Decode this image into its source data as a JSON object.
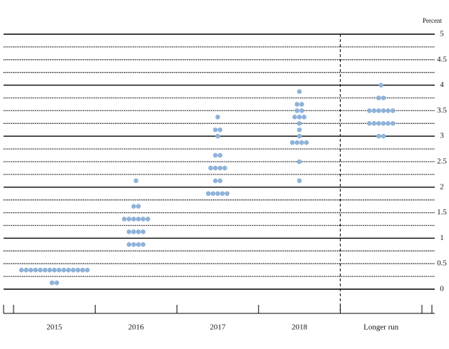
{
  "chart_data": {
    "type": "dot",
    "y_label": "Percent",
    "categories": [
      "2015",
      "2016",
      "2017",
      "2018",
      "Longer run"
    ],
    "color": "#8fb3d9",
    "values": [
      [
        0.375,
        0.375,
        0.375,
        0.375,
        0.375,
        0.375,
        0.375,
        0.375,
        0.375,
        0.375,
        0.375,
        0.375,
        0.375,
        0.375,
        0.375,
        0.125,
        0.125
      ],
      [
        2.125,
        1.625,
        1.625,
        1.375,
        1.375,
        1.375,
        1.375,
        1.375,
        1.375,
        1.125,
        1.125,
        1.125,
        1.125,
        0.875,
        0.875,
        0.875,
        0.875
      ],
      [
        3.375,
        3.125,
        3.125,
        3,
        2.625,
        2.625,
        2.375,
        2.375,
        2.375,
        2.375,
        2.125,
        2.125,
        1.875,
        1.875,
        1.875,
        1.875,
        1.875
      ],
      [
        3.875,
        3.625,
        3.625,
        3.5,
        3.5,
        3.375,
        3.375,
        3.375,
        3.25,
        3.125,
        3,
        2.875,
        2.875,
        2.875,
        2.875,
        2.5,
        2.125
      ],
      [
        4,
        3.75,
        3.75,
        3.5,
        3.5,
        3.5,
        3.5,
        3.5,
        3.5,
        3.25,
        3.25,
        3.25,
        3.25,
        3.25,
        3.25,
        3,
        3
      ]
    ],
    "ylim": [
      0,
      5
    ],
    "yticks": [
      0,
      0.5,
      1,
      1.5,
      2,
      2.5,
      3,
      3.5,
      4,
      4.5,
      5
    ],
    "minor_yticks": [
      0.25,
      0.75,
      1.25,
      1.75,
      2.25,
      2.75,
      3.25,
      3.75,
      4.25,
      4.75
    ],
    "grid": true
  }
}
